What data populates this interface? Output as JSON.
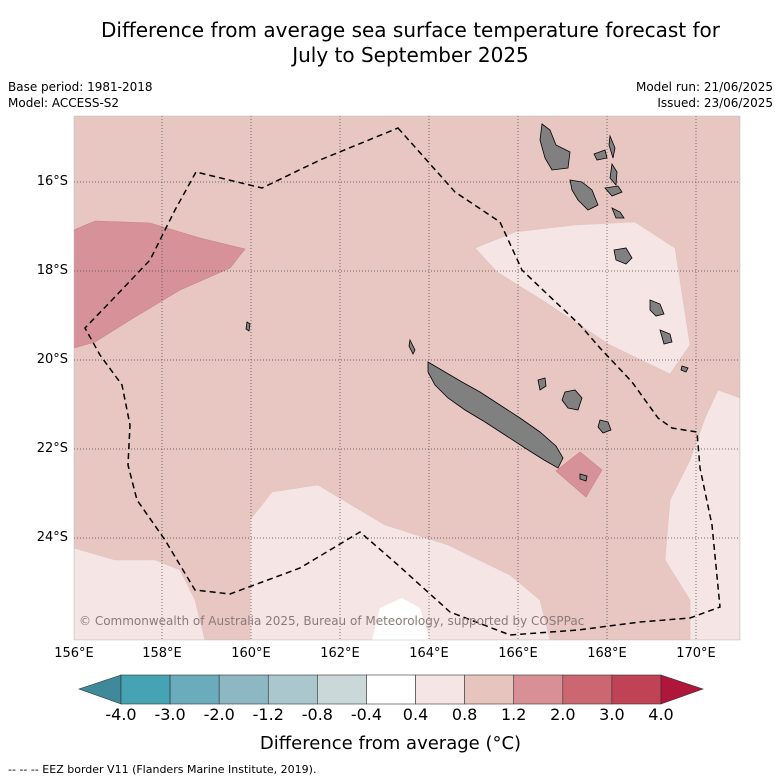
{
  "title_line1": "Difference from average sea surface temperature forecast for",
  "title_line2": "July to September 2025",
  "meta_left": {
    "base_period": "Base period: 1981-2018",
    "model": "Model: ACCESS-S2"
  },
  "meta_right": {
    "model_run": "Model run: 21/06/2025",
    "issued": "Issued: 23/06/2025"
  },
  "copyright": "© Commonwealth of Australia 2025, Bureau of Meteorology, supported by COSPPac",
  "latitudes": [
    "16°S",
    "18°S",
    "20°S",
    "22°S",
    "24°S"
  ],
  "longitudes": [
    "156°E",
    "158°E",
    "160°E",
    "162°E",
    "164°E",
    "166°E",
    "168°E",
    "170°E"
  ],
  "colorbar": {
    "labels": [
      "-4.0",
      "-3.0",
      "-2.0",
      "-1.2",
      "-0.8",
      "-0.4",
      "0.4",
      "0.8",
      "1.2",
      "2.0",
      "3.0",
      "4.0"
    ],
    "colors": [
      "#3f8a9a",
      "#45a3b3",
      "#6aacbc",
      "#8db7c3",
      "#a9c7cc",
      "#cbd8da",
      "#ffffff",
      "#f5e6e5",
      "#e8c4bf",
      "#d88f96",
      "#cc6670",
      "#bf4255",
      "#b0163a"
    ],
    "title": "Difference from average (°C)"
  },
  "footnote": "--  --  -- EEZ border V11 (Flanders Marine Institute, 2019)."
}
